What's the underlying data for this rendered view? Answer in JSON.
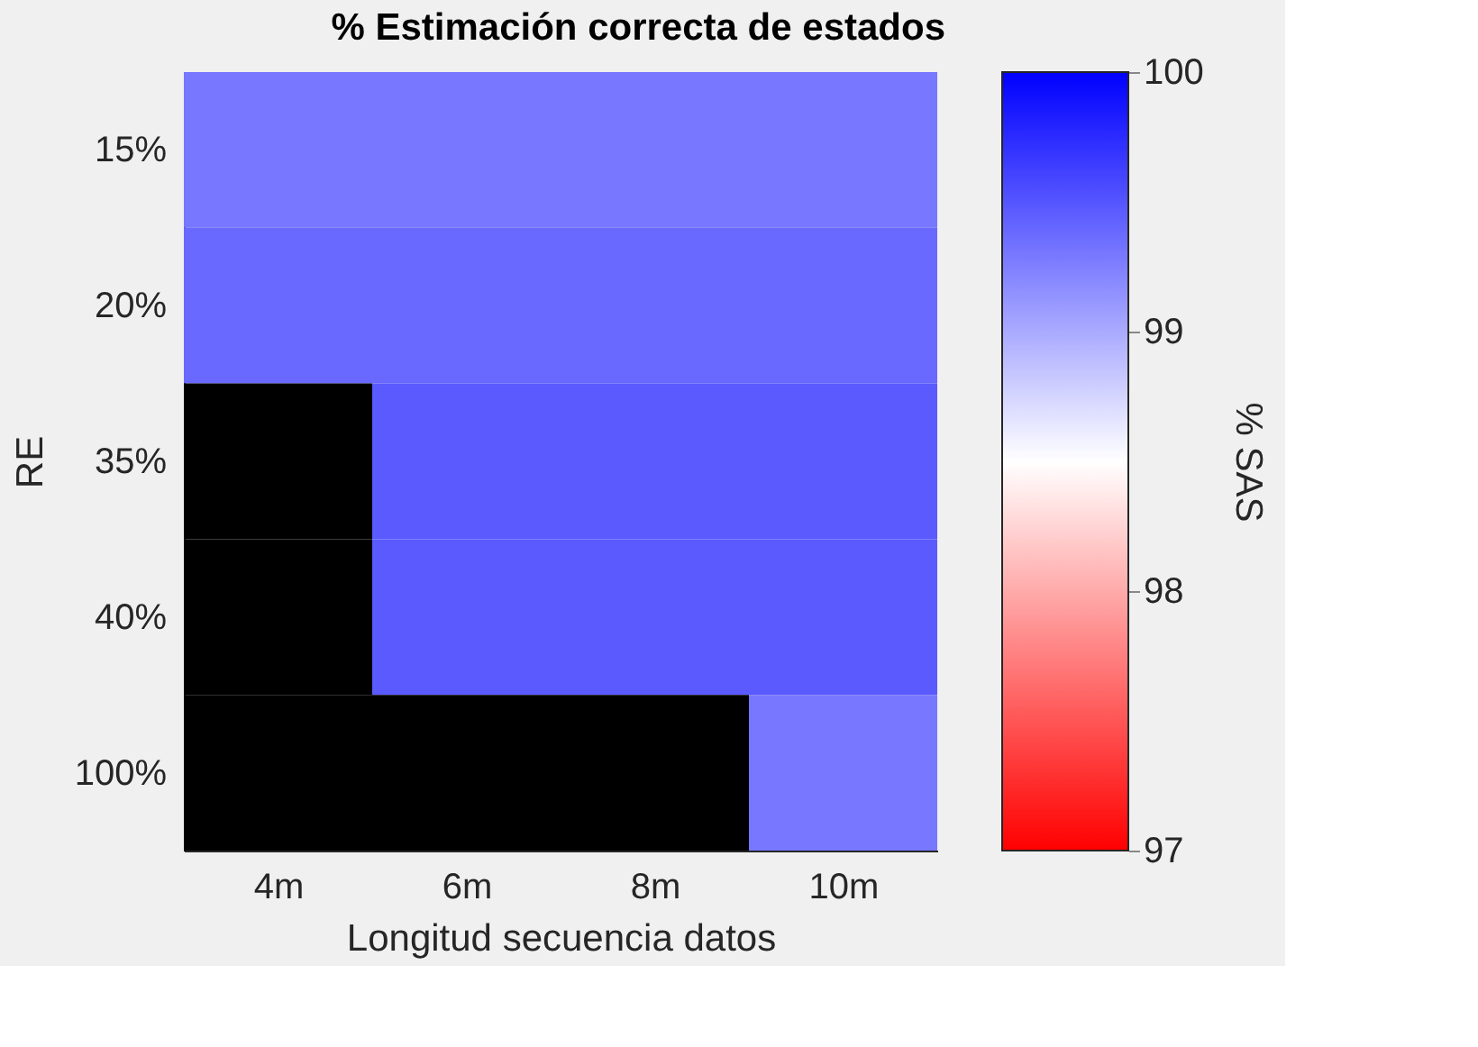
{
  "chart_data": {
    "type": "heatmap",
    "title": "% Estimación correcta de estados",
    "xlabel": "Longitud secuencia datos",
    "ylabel": "RE",
    "clabel": "% SAS",
    "categories": [
      "4m",
      "6m",
      "8m",
      "10m"
    ],
    "y_categories": [
      "15%",
      "20%",
      "35%",
      "40%",
      "100%"
    ],
    "cells": [
      [
        99.3,
        99.3,
        99.3,
        99.3
      ],
      [
        99.38,
        99.38,
        99.38,
        99.38
      ],
      [
        null,
        99.47,
        99.47,
        99.47
      ],
      [
        null,
        99.47,
        99.47,
        99.47
      ],
      [
        null,
        null,
        null,
        99.3
      ]
    ],
    "clim": [
      97,
      100
    ],
    "cticks": [
      97,
      98,
      99,
      100
    ],
    "grid": false
  }
}
